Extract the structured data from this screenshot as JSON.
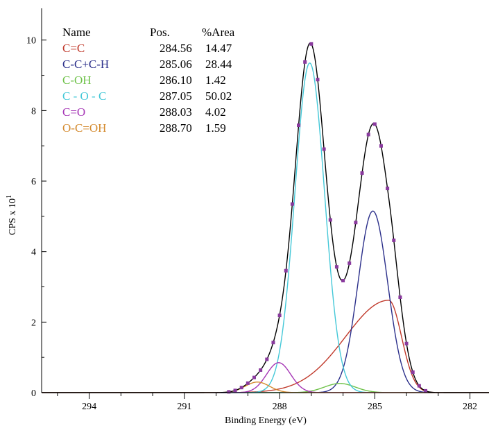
{
  "chart_data": {
    "type": "line",
    "title": "",
    "xlabel": "Binding Energy (eV)",
    "ylabel_base": "CPS x 10",
    "ylabel_exp": "1",
    "xlim": [
      295.5,
      281.4
    ],
    "x_reversed": true,
    "ylim": [
      0,
      10.9
    ],
    "x_ticks": [
      294,
      291,
      288,
      285,
      282
    ],
    "y_ticks": [
      0,
      2,
      4,
      6,
      8,
      10
    ],
    "legend": {
      "position": "top-left",
      "headers": [
        "Name",
        "Pos.",
        "%Area"
      ],
      "rows": [
        {
          "name": "C=C",
          "pos": "284.56",
          "area": "14.47",
          "color": "#c0392b"
        },
        {
          "name": "C-C+C-H",
          "pos": "285.06",
          "area": "28.44",
          "color": "#2b2f8a"
        },
        {
          "name": "C-OH",
          "pos": "286.10",
          "area": "1.42",
          "color": "#6fc24a"
        },
        {
          "name": "C - O - C",
          "pos": "287.05",
          "area": "50.02",
          "color": "#44c8d8"
        },
        {
          "name": "C=O",
          "pos": "288.03",
          "area": "4.02",
          "color": "#a535b5"
        },
        {
          "name": "O-C=OH",
          "pos": "288.70",
          "area": "1.59",
          "color": "#d48a2e"
        }
      ]
    },
    "peaks": [
      {
        "name": "C=C",
        "center": 284.56,
        "height": 2.62,
        "fwhm_low": 0.95,
        "fwhm_high": 3.2,
        "color": "#c0392b"
      },
      {
        "name": "C-C+C-H",
        "center": 285.06,
        "height": 5.15,
        "fwhm": 1.1,
        "color": "#2b2f8a"
      },
      {
        "name": "C-OH",
        "center": 286.1,
        "height": 0.26,
        "fwhm": 1.15,
        "color": "#6fc24a"
      },
      {
        "name": "C - O - C",
        "center": 287.05,
        "height": 9.35,
        "fwhm": 1.1,
        "color": "#44c8d8"
      },
      {
        "name": "C=O",
        "center": 288.03,
        "height": 0.85,
        "fwhm": 0.9,
        "color": "#a535b5"
      },
      {
        "name": "O-C=OH",
        "center": 288.7,
        "height": 0.3,
        "fwhm": 0.9,
        "color": "#d48a2e"
      }
    ],
    "envelope_color": "#000000",
    "data_point_color": "#8a3a9e",
    "data_points_x_range": [
      283.4,
      289.6
    ],
    "data_points_step": 0.2,
    "grid": false
  }
}
